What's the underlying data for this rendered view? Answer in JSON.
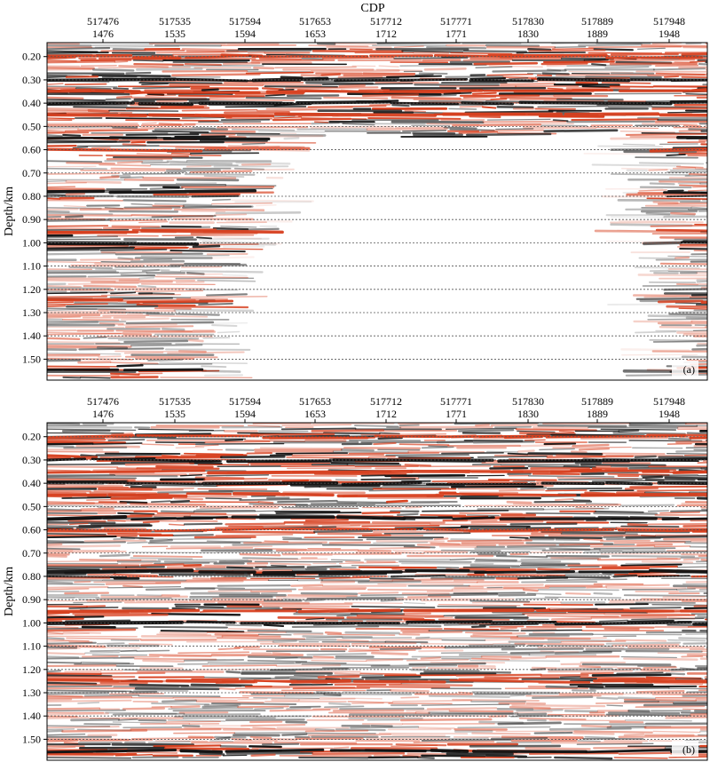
{
  "figure": {
    "colors": {
      "positive": "#d7401f",
      "negative": "#111111",
      "background": "#ffffff",
      "gridline": "#555555"
    }
  },
  "chart_data": [
    {
      "type": "heatmap",
      "panel_label": "(a)",
      "title": "CDP",
      "x_ticks": [
        {
          "top": "517476",
          "bottom": "1476"
        },
        {
          "top": "517535",
          "bottom": "1535"
        },
        {
          "top": "517594",
          "bottom": "1594"
        },
        {
          "top": "517653",
          "bottom": "1653"
        },
        {
          "top": "517712",
          "bottom": "1712"
        },
        {
          "top": "517771",
          "bottom": "1771"
        },
        {
          "top": "517830",
          "bottom": "1830"
        },
        {
          "top": "517889",
          "bottom": "1889"
        },
        {
          "top": "517948",
          "bottom": "1948"
        }
      ],
      "xlim": [
        1436,
        1982
      ],
      "ylabel": "Depth/km",
      "y_ticks": [
        "0.20",
        "0.30",
        "0.40",
        "0.50",
        "0.60",
        "0.70",
        "0.80",
        "0.90",
        "1.00",
        "1.10",
        "1.20",
        "1.30",
        "1.40",
        "1.50"
      ],
      "ylim": [
        0.14,
        1.59
      ],
      "grid": "dotted horizontal at each depth tick",
      "coverage": "data gap in the centre below about 0.6 km",
      "strong_reflectors_km": [
        0.2,
        0.3,
        0.35,
        0.4,
        0.45,
        0.55,
        0.6,
        0.78,
        0.95,
        1.0,
        1.25,
        1.55
      ]
    },
    {
      "type": "heatmap",
      "panel_label": "(b)",
      "x_ticks": [
        {
          "top": "517476",
          "bottom": "1476"
        },
        {
          "top": "517535",
          "bottom": "1535"
        },
        {
          "top": "517594",
          "bottom": "1594"
        },
        {
          "top": "517653",
          "bottom": "1653"
        },
        {
          "top": "517712",
          "bottom": "1712"
        },
        {
          "top": "517771",
          "bottom": "1771"
        },
        {
          "top": "517830",
          "bottom": "1830"
        },
        {
          "top": "517889",
          "bottom": "1889"
        },
        {
          "top": "517948",
          "bottom": "1948"
        }
      ],
      "xlim": [
        1436,
        1982
      ],
      "ylabel": "Depth/km",
      "y_ticks": [
        "0.20",
        "0.30",
        "0.40",
        "0.50",
        "0.60",
        "0.70",
        "0.80",
        "0.90",
        "1.00",
        "1.10",
        "1.20",
        "1.30",
        "1.40",
        "1.50"
      ],
      "ylim": [
        0.14,
        1.59
      ],
      "grid": "dotted horizontal at each depth tick",
      "coverage": "full",
      "strong_reflectors_km": [
        0.2,
        0.3,
        0.35,
        0.4,
        0.45,
        0.55,
        0.6,
        0.78,
        0.95,
        1.0,
        1.25,
        1.55
      ]
    }
  ]
}
